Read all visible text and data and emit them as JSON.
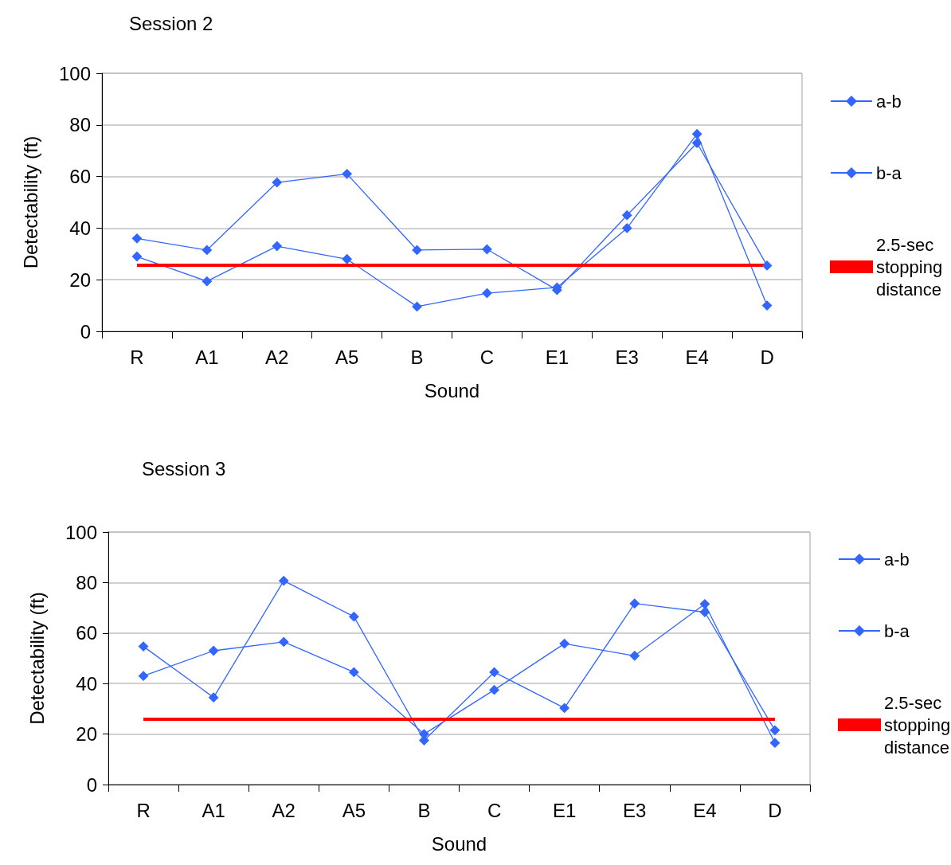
{
  "chart_data": [
    {
      "type": "line",
      "title": "Session 2",
      "xlabel": "Sound",
      "ylabel": "Detectability (ft)",
      "categories": [
        "R",
        "A1",
        "A2",
        "A5",
        "B",
        "C",
        "E1",
        "E3",
        "E4",
        "D"
      ],
      "ylim": [
        0,
        100
      ],
      "yticks": [
        0,
        20,
        40,
        60,
        80,
        100
      ],
      "grid": "y",
      "legend": "right",
      "series": [
        {
          "name": "a-b",
          "color": "#3366ff",
          "marker": "diamond",
          "values": [
            29,
            19.4,
            33,
            28,
            9.6,
            14.8,
            17,
            40,
            76.5,
            10
          ]
        },
        {
          "name": "b-a",
          "color": "#3366ff",
          "marker": "diamond",
          "values": [
            36,
            31.5,
            57.7,
            61,
            31.5,
            31.8,
            16,
            45,
            73,
            25.5
          ]
        },
        {
          "name": "2.5-sec stopping distance",
          "color": "#ff0000",
          "marker": "none",
          "values": [
            25.6,
            25.6,
            25.6,
            25.6,
            25.6,
            25.6,
            25.6,
            25.6,
            25.6,
            25.6
          ]
        }
      ]
    },
    {
      "type": "line",
      "title": "Session 3",
      "xlabel": "Sound",
      "ylabel": "Detectability (ft)",
      "categories": [
        "R",
        "A1",
        "A2",
        "A5",
        "B",
        "C",
        "E1",
        "E3",
        "E4",
        "D"
      ],
      "ylim": [
        0,
        100
      ],
      "yticks": [
        0,
        20,
        40,
        60,
        80,
        100
      ],
      "grid": "y",
      "legend": "right",
      "series": [
        {
          "name": "a-b",
          "color": "#3366ff",
          "marker": "diamond",
          "values": [
            43,
            53,
            56.5,
            44.5,
            20,
            37.5,
            55.8,
            51,
            71.5,
            16.5
          ]
        },
        {
          "name": "b-a",
          "color": "#3366ff",
          "marker": "diamond",
          "values": [
            54.7,
            34.5,
            80.7,
            66.5,
            17.5,
            44.5,
            30.3,
            71.7,
            68.3,
            21.5
          ]
        },
        {
          "name": "2.5-sec stopping distance",
          "color": "#ff0000",
          "marker": "none",
          "values": [
            25.9,
            25.9,
            25.9,
            25.9,
            25.9,
            25.9,
            25.9,
            25.9,
            25.9,
            25.9
          ]
        }
      ]
    }
  ]
}
